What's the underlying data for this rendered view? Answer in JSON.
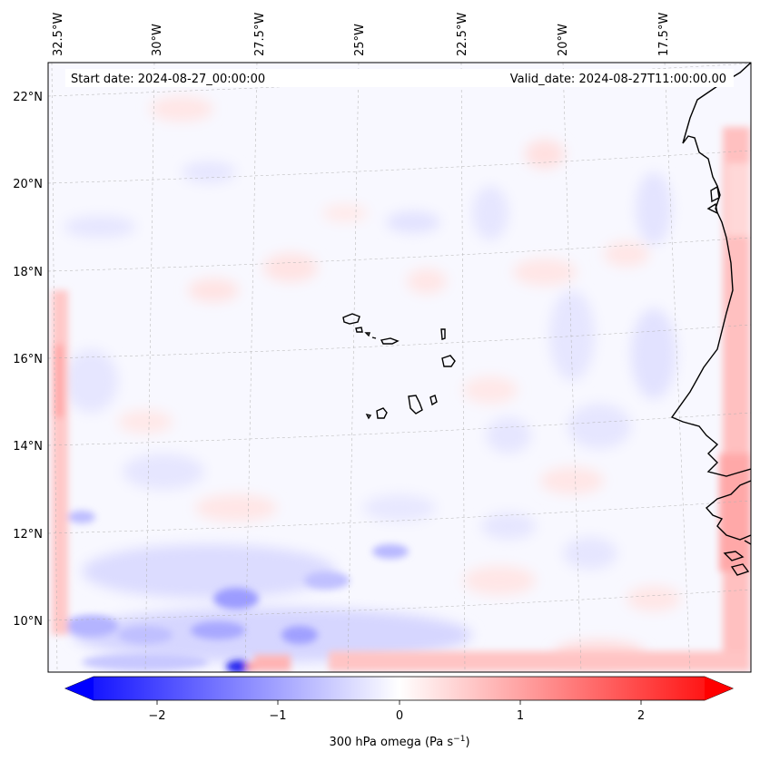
{
  "map": {
    "top_labels": [
      "32.5°W",
      "30°W",
      "27.5°W",
      "25°W",
      "22.5°W",
      "20°W",
      "17.5°W"
    ],
    "left_labels": [
      "22°N",
      "20°N",
      "18°N",
      "16°N",
      "14°N",
      "12°N",
      "10°N"
    ],
    "start_date": "Start date: 2024-08-27_00:00:00",
    "valid_date": "Valid_date: 2024-08-27T11:00:00.00"
  },
  "colorbar": {
    "ticks": [
      "−2",
      "−1",
      "0",
      "1",
      "2"
    ],
    "label_main": "300 hPa omega (Pa s",
    "label_exp": "−1",
    "label_close": ")",
    "min": -2.6,
    "max": 2.6,
    "colors": {
      "negative": "#0000ff",
      "zero": "#ffffff",
      "positive": "#ff0000"
    }
  },
  "field": {
    "background": "#f8f8ff",
    "blob_neg": "#dcdcff",
    "blob_neg_strong": "#8080ff",
    "blob_pos": "#ffdada",
    "blob_pos_strong": "#ff9a9a"
  }
}
